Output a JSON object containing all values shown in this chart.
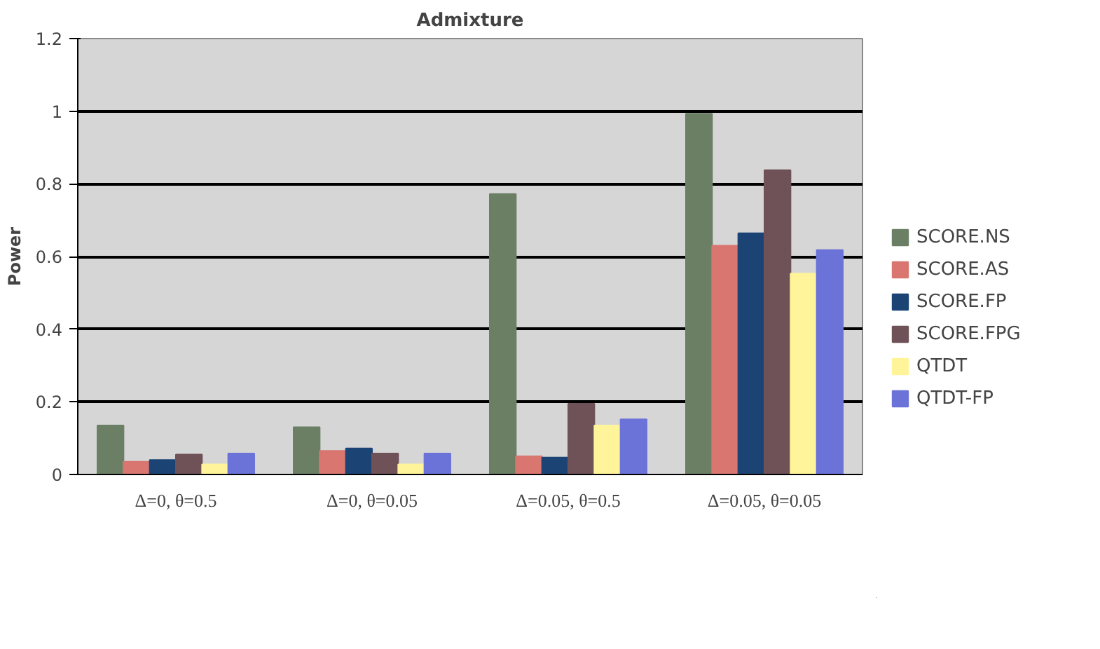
{
  "chart_data": {
    "type": "bar",
    "title": "Admixture",
    "ylabel": "Power",
    "categories": [
      "Δ=0, θ=0.5",
      "Δ=0, θ=0.05",
      "Δ=0.05, θ=0.5",
      "Δ=0.05, θ=0.05"
    ],
    "series": [
      {
        "name": "SCORE.NS",
        "color": "#6b7f65",
        "values": [
          0.135,
          0.13,
          0.772,
          0.993
        ]
      },
      {
        "name": "SCORE.AS",
        "color": "#d97670",
        "values": [
          0.035,
          0.065,
          0.05,
          0.63
        ]
      },
      {
        "name": "SCORE.FP",
        "color": "#1b4475",
        "values": [
          0.04,
          0.072,
          0.047,
          0.664
        ]
      },
      {
        "name": "SCORE.FPG",
        "color": "#6e5257",
        "values": [
          0.055,
          0.058,
          0.195,
          0.838
        ]
      },
      {
        "name": "QTDT",
        "color": "#fff49a",
        "values": [
          0.028,
          0.028,
          0.135,
          0.553
        ]
      },
      {
        "name": "QTDT-FP",
        "color": "#6b72d8",
        "values": [
          0.058,
          0.058,
          0.152,
          0.618
        ]
      }
    ],
    "ylim": [
      0,
      1.2
    ],
    "yticks": [
      0,
      0.2,
      0.4,
      0.6,
      0.8,
      1,
      1.2
    ],
    "grid": "y",
    "legend": "right"
  }
}
